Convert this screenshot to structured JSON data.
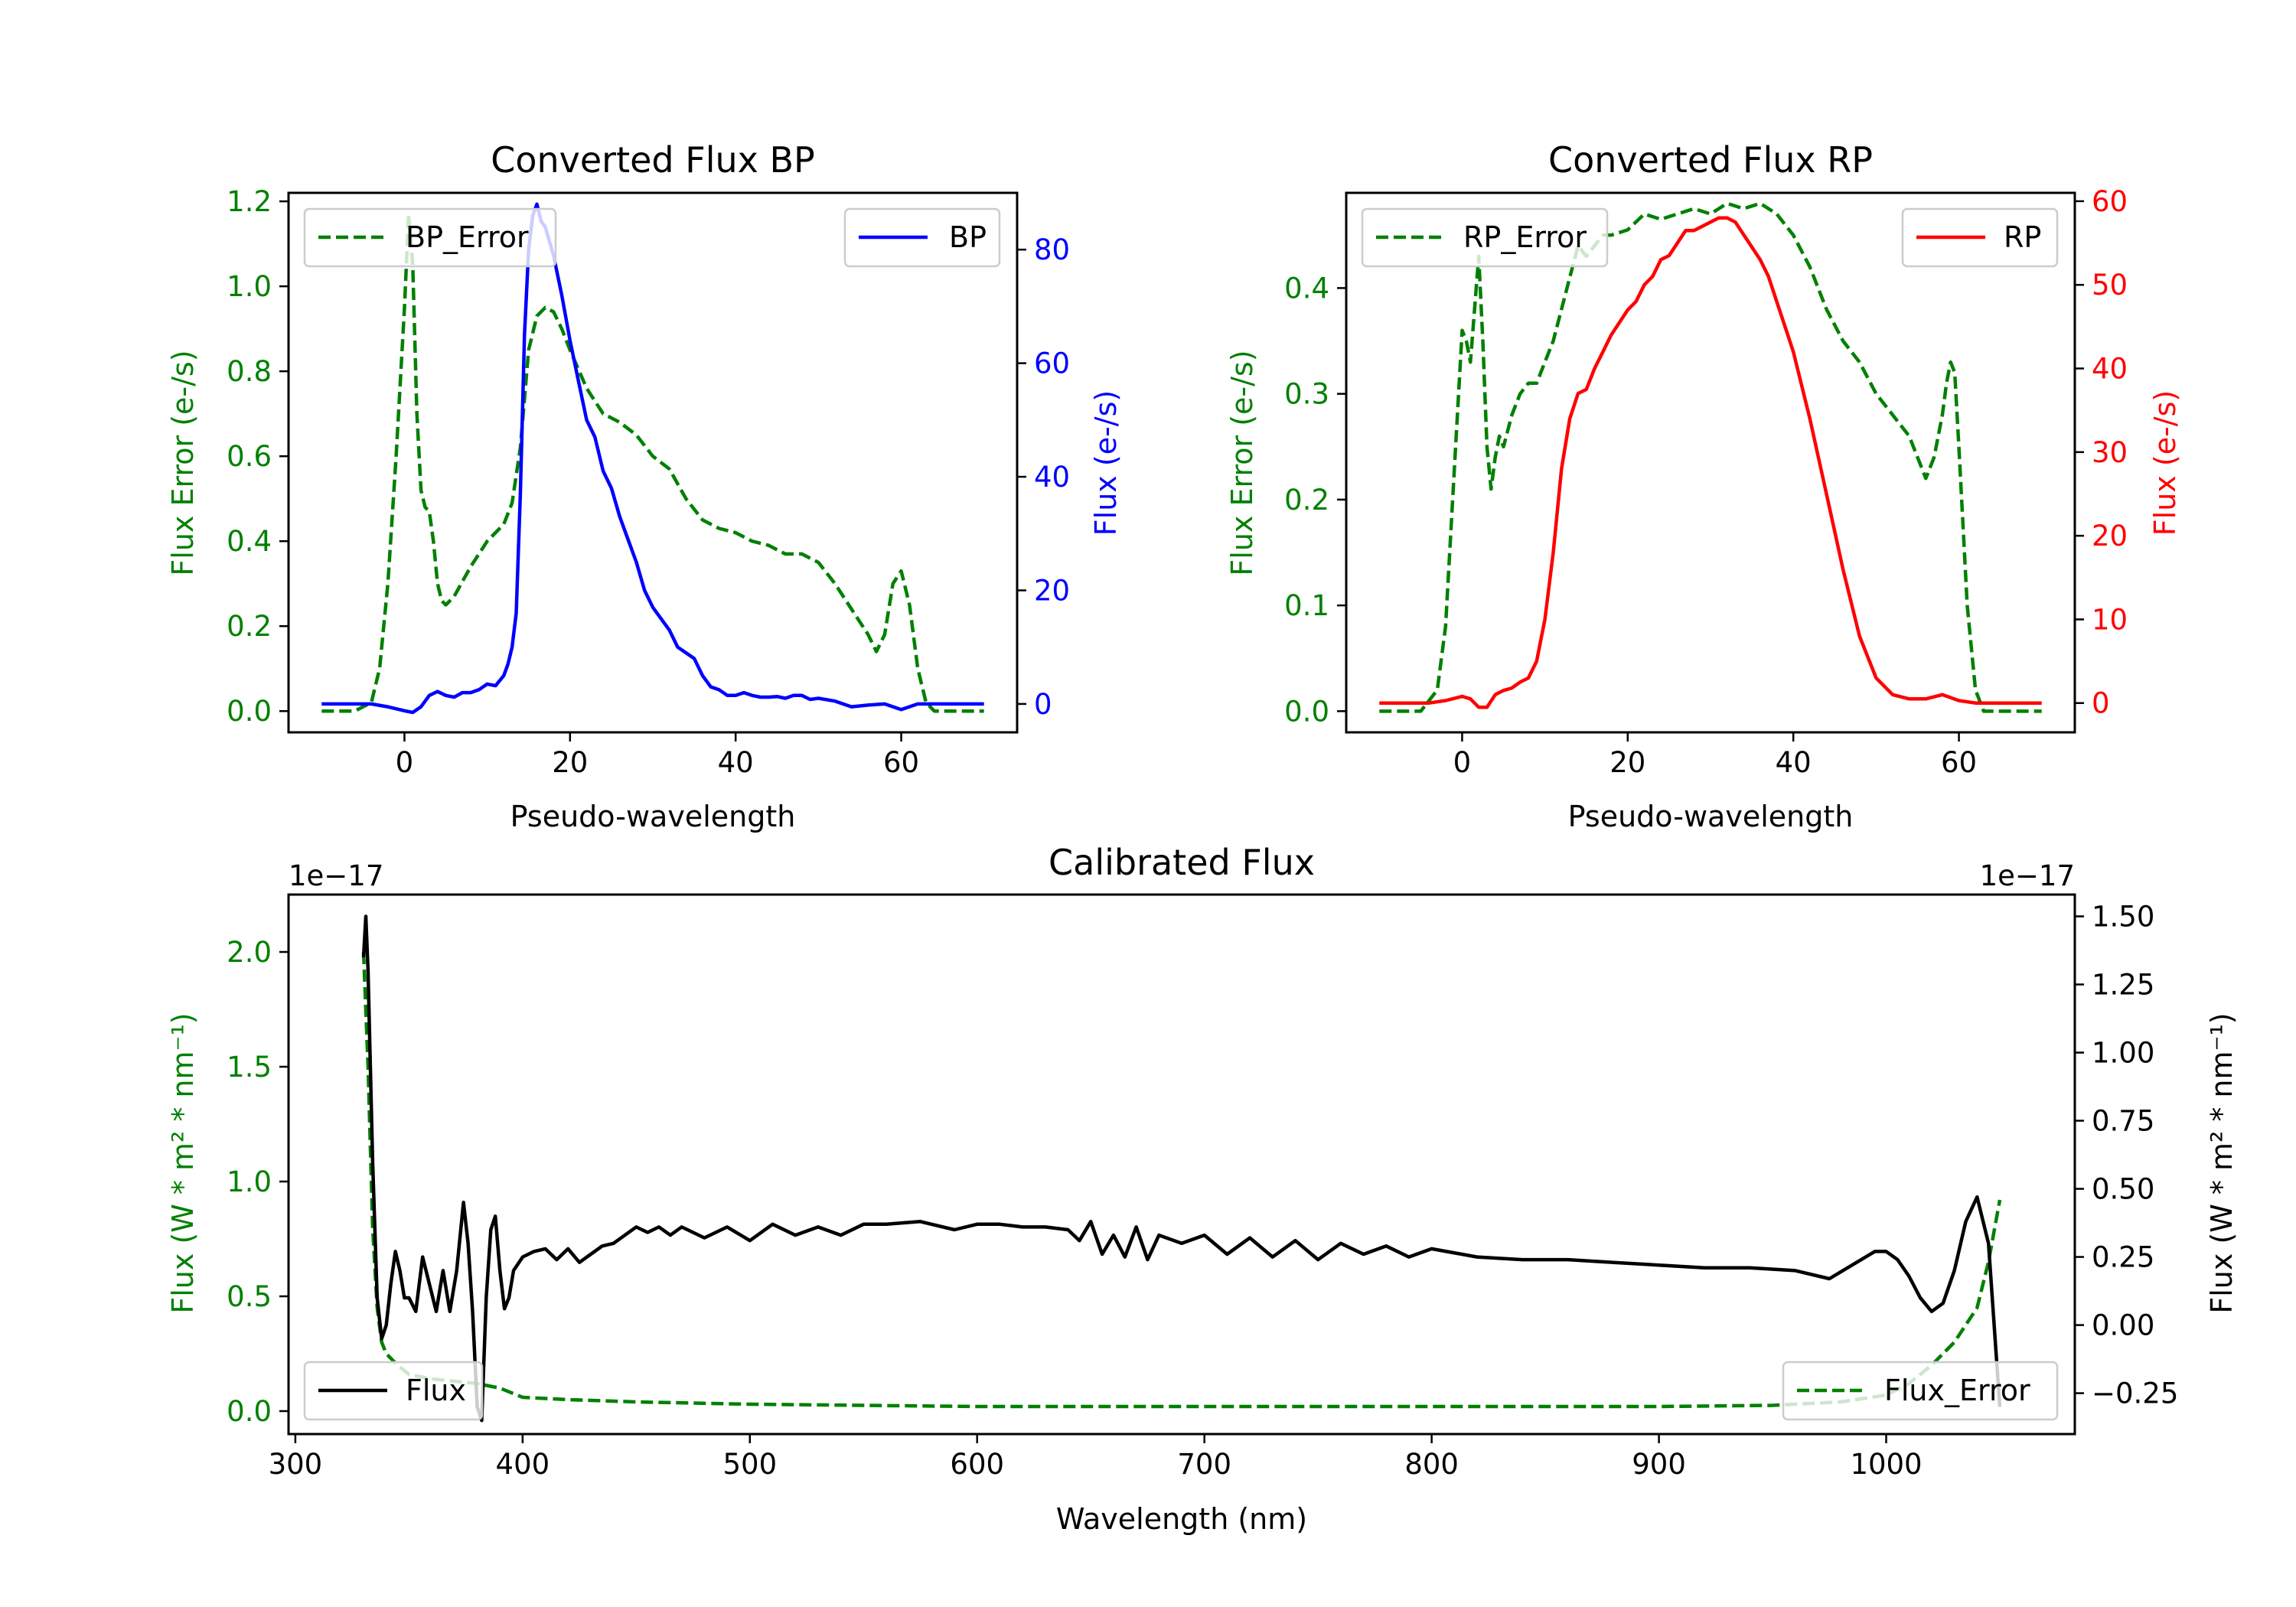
{
  "figure_title": "",
  "colors": {
    "bp": "#0000ff",
    "rp": "#ff0000",
    "error": "#008000",
    "flux": "#000000",
    "axis": "#000000"
  },
  "chart_data": [
    {
      "id": "bp",
      "type": "line",
      "title": "Converted Flux BP",
      "xlabel": "Pseudo-wavelength",
      "ylabel_left": "Flux Error (e-/s)",
      "ylabel_right": "Flux (e-/s)",
      "xlim": [
        -14,
        74
      ],
      "xticks": [
        0,
        20,
        40,
        60
      ],
      "ylim_left": [
        -0.05,
        1.22
      ],
      "yticks_left": [
        0.0,
        0.2,
        0.4,
        0.6,
        0.8,
        1.0,
        1.2
      ],
      "ytick_labels_left": [
        "0.0",
        "0.2",
        "0.4",
        "0.6",
        "0.8",
        "1.0",
        "1.2"
      ],
      "ylim_right": [
        -5,
        90
      ],
      "yticks_right": [
        0,
        20,
        40,
        60,
        80
      ],
      "legend_left": "top-left",
      "legend_right": "top-right",
      "series": [
        {
          "name": "BP_Error",
          "axis": "left",
          "color_key": "error",
          "dashed": true,
          "x": [
            -10,
            -6,
            -4,
            -3,
            -2,
            -1,
            0,
            0.5,
            1,
            1.5,
            2,
            2.5,
            3,
            3.5,
            4,
            4.5,
            5,
            5.5,
            6,
            8,
            10,
            12,
            13,
            14,
            15,
            16,
            17,
            18,
            19,
            20,
            22,
            24,
            26,
            28,
            30,
            32,
            34,
            36,
            38,
            40,
            42,
            44,
            46,
            48,
            50,
            52,
            54,
            56,
            57,
            58,
            59,
            60,
            61,
            62,
            63,
            64,
            66,
            68,
            70
          ],
          "values": [
            0.0,
            0.0,
            0.02,
            0.1,
            0.3,
            0.6,
            0.95,
            1.17,
            1.05,
            0.7,
            0.52,
            0.48,
            0.47,
            0.4,
            0.3,
            0.26,
            0.25,
            0.26,
            0.27,
            0.34,
            0.4,
            0.44,
            0.49,
            0.62,
            0.85,
            0.93,
            0.95,
            0.94,
            0.9,
            0.85,
            0.76,
            0.7,
            0.68,
            0.65,
            0.6,
            0.57,
            0.5,
            0.45,
            0.43,
            0.42,
            0.4,
            0.39,
            0.37,
            0.37,
            0.35,
            0.3,
            0.24,
            0.18,
            0.14,
            0.18,
            0.3,
            0.33,
            0.25,
            0.1,
            0.02,
            0.0,
            0.0,
            0.0,
            0.0
          ]
        },
        {
          "name": "BP",
          "axis": "right",
          "color_key": "bp",
          "dashed": false,
          "x": [
            -10,
            -4,
            -2,
            0,
            1,
            2,
            3,
            4,
            5,
            6,
            7,
            8,
            9,
            10,
            11,
            12,
            12.5,
            13,
            13.5,
            14,
            14.5,
            15,
            15.5,
            16,
            16.5,
            17,
            18,
            19,
            20,
            21,
            22,
            23,
            24,
            25,
            26,
            27,
            28,
            29,
            30,
            31,
            32,
            33,
            34,
            35,
            36,
            37,
            38,
            39,
            40,
            41,
            42,
            43,
            44,
            45,
            46,
            47,
            48,
            49,
            50,
            52,
            54,
            56,
            58,
            60,
            62,
            64,
            66,
            70
          ],
          "values": [
            0,
            0,
            -0.5,
            -1.2,
            -1.5,
            -0.5,
            1.5,
            2.2,
            1.5,
            1.2,
            2,
            2,
            2.5,
            3.5,
            3.2,
            5,
            7,
            10,
            16,
            37,
            65,
            80,
            86,
            88,
            85,
            84,
            79,
            72,
            64,
            57,
            50,
            47,
            41,
            38,
            33,
            29,
            25,
            20,
            17,
            15,
            13,
            10,
            9,
            8,
            5,
            3,
            2.5,
            1.5,
            1.5,
            2,
            1.5,
            1.2,
            1.2,
            1.3,
            1.0,
            1.5,
            1.5,
            0.8,
            1.0,
            0.5,
            -0.5,
            -0.2,
            0,
            -1.0,
            0,
            0,
            0,
            0
          ]
        }
      ]
    },
    {
      "id": "rp",
      "type": "line",
      "title": "Converted Flux RP",
      "xlabel": "Pseudo-wavelength",
      "ylabel_left": "Flux Error (e-/s)",
      "ylabel_right": "Flux (e-/s)",
      "xlim": [
        -14,
        74
      ],
      "xticks": [
        0,
        20,
        40,
        60
      ],
      "ylim_left": [
        -0.02,
        0.49
      ],
      "yticks_left": [
        0.0,
        0.1,
        0.2,
        0.3,
        0.4
      ],
      "ytick_labels_left": [
        "0.0",
        "0.1",
        "0.2",
        "0.3",
        "0.4"
      ],
      "ylim_right": [
        -3.5,
        61
      ],
      "yticks_right": [
        0,
        10,
        20,
        30,
        40,
        50,
        60
      ],
      "legend_left": "top-left",
      "legend_right": "top-right",
      "series": [
        {
          "name": "RP_Error",
          "axis": "left",
          "color_key": "error",
          "dashed": true,
          "x": [
            -10,
            -5,
            -3,
            -2,
            -1,
            0,
            0.5,
            1,
            1.5,
            2,
            2.5,
            3,
            3.5,
            4,
            4.5,
            5,
            6,
            7,
            8,
            9,
            10,
            11,
            12,
            13,
            14,
            15,
            16,
            17,
            18,
            20,
            22,
            24,
            26,
            28,
            30,
            32,
            34,
            36,
            38,
            40,
            42,
            44,
            46,
            48,
            50,
            52,
            54,
            55,
            56,
            57,
            58,
            58.5,
            59,
            59.5,
            60,
            61,
            62,
            63,
            64,
            66,
            70
          ],
          "values": [
            0.0,
            0.0,
            0.02,
            0.08,
            0.22,
            0.36,
            0.35,
            0.33,
            0.38,
            0.43,
            0.35,
            0.25,
            0.21,
            0.24,
            0.26,
            0.25,
            0.28,
            0.3,
            0.31,
            0.31,
            0.33,
            0.35,
            0.38,
            0.41,
            0.44,
            0.43,
            0.44,
            0.45,
            0.45,
            0.455,
            0.47,
            0.465,
            0.47,
            0.475,
            0.47,
            0.48,
            0.475,
            0.48,
            0.47,
            0.45,
            0.42,
            0.38,
            0.35,
            0.33,
            0.3,
            0.28,
            0.26,
            0.24,
            0.22,
            0.24,
            0.28,
            0.31,
            0.33,
            0.32,
            0.25,
            0.1,
            0.02,
            0.0,
            0.0,
            0.0,
            0.0
          ]
        },
        {
          "name": "RP",
          "axis": "right",
          "color_key": "rp",
          "dashed": false,
          "x": [
            -10,
            -4,
            -2,
            0,
            1,
            2,
            3,
            4,
            5,
            6,
            7,
            8,
            9,
            10,
            11,
            12,
            13,
            14,
            15,
            16,
            17,
            18,
            19,
            20,
            21,
            22,
            23,
            24,
            25,
            26,
            27,
            28,
            29,
            30,
            31,
            32,
            33,
            34,
            35,
            36,
            37,
            38,
            39,
            40,
            42,
            44,
            46,
            48,
            50,
            52,
            54,
            56,
            58,
            60,
            62,
            66,
            70
          ],
          "values": [
            0,
            0,
            0.3,
            0.8,
            0.5,
            -0.5,
            -0.5,
            1.0,
            1.5,
            1.8,
            2.5,
            3,
            5,
            10,
            18,
            28,
            34,
            37,
            37.5,
            40,
            42,
            44,
            45.5,
            47,
            48,
            50,
            51,
            53,
            53.5,
            55,
            56.5,
            56.5,
            57,
            57.5,
            58,
            58,
            57.5,
            56,
            54.5,
            53,
            51,
            48,
            45,
            42,
            34,
            25,
            16,
            8,
            3,
            1,
            0.5,
            0.5,
            1.0,
            0.3,
            0,
            0,
            0
          ]
        }
      ]
    },
    {
      "id": "calibrated",
      "type": "line",
      "title": "Calibrated Flux",
      "xlabel": "Wavelength (nm)",
      "ylabel_left": "Flux (W * m² * nm⁻¹)",
      "ylabel_right": "Flux (W * m² * nm⁻¹)",
      "offset_left": "1e−17",
      "offset_right": "1e−17",
      "xlim": [
        297,
        1083
      ],
      "xticks": [
        300,
        400,
        500,
        600,
        700,
        800,
        900,
        1000
      ],
      "ylim_left": [
        -0.1,
        2.25
      ],
      "yticks_left": [
        0.0,
        0.5,
        1.0,
        1.5,
        2.0
      ],
      "ytick_labels_left": [
        "0.0",
        "0.5",
        "1.0",
        "1.5",
        "2.0"
      ],
      "ylim_right": [
        -0.4,
        1.58
      ],
      "yticks_right": [
        -0.25,
        0.0,
        0.25,
        0.5,
        0.75,
        1.0,
        1.25,
        1.5
      ],
      "ytick_labels_right": [
        "−0.25",
        "0.00",
        "0.25",
        "0.50",
        "0.75",
        "1.00",
        "1.25",
        "1.50"
      ],
      "legend_left": "bottom-left",
      "legend_right": "bottom-right",
      "series": [
        {
          "name": "Flux_Error",
          "axis": "left",
          "color_key": "error",
          "dashed": true,
          "x": [
            330,
            332,
            334,
            336,
            338,
            340,
            345,
            350,
            360,
            370,
            380,
            385,
            390,
            400,
            420,
            450,
            500,
            550,
            600,
            650,
            700,
            800,
            900,
            950,
            980,
            1000,
            1010,
            1020,
            1030,
            1040,
            1045,
            1050
          ],
          "values": [
            2.0,
            1.5,
            0.8,
            0.45,
            0.3,
            0.25,
            0.2,
            0.16,
            0.14,
            0.13,
            0.12,
            0.11,
            0.1,
            0.06,
            0.05,
            0.04,
            0.03,
            0.025,
            0.02,
            0.02,
            0.02,
            0.02,
            0.02,
            0.025,
            0.04,
            0.07,
            0.12,
            0.2,
            0.3,
            0.45,
            0.65,
            0.92
          ]
        },
        {
          "name": "Flux",
          "axis": "right",
          "color_key": "flux",
          "dashed": false,
          "x": [
            330,
            331,
            332,
            334,
            336,
            338,
            340,
            342,
            344,
            346,
            348,
            350,
            353,
            356,
            359,
            362,
            365,
            368,
            371,
            374,
            376,
            378,
            380,
            382,
            384,
            386,
            388,
            390,
            392,
            394,
            396,
            400,
            405,
            410,
            415,
            420,
            425,
            430,
            435,
            440,
            445,
            450,
            455,
            460,
            465,
            470,
            480,
            490,
            500,
            510,
            520,
            530,
            540,
            550,
            560,
            575,
            590,
            600,
            610,
            620,
            630,
            640,
            645,
            650,
            655,
            660,
            665,
            670,
            675,
            680,
            690,
            700,
            710,
            720,
            730,
            740,
            750,
            760,
            770,
            780,
            790,
            800,
            820,
            840,
            860,
            880,
            900,
            920,
            940,
            960,
            975,
            985,
            995,
            1000,
            1005,
            1010,
            1015,
            1020,
            1025,
            1030,
            1035,
            1040,
            1045,
            1050
          ],
          "values": [
            1.35,
            1.5,
            1.3,
            0.6,
            0.1,
            -0.05,
            0.0,
            0.15,
            0.27,
            0.2,
            0.1,
            0.1,
            0.05,
            0.25,
            0.15,
            0.05,
            0.2,
            0.05,
            0.2,
            0.45,
            0.3,
            0.05,
            -0.3,
            -0.35,
            0.1,
            0.35,
            0.4,
            0.2,
            0.06,
            0.1,
            0.2,
            0.25,
            0.27,
            0.28,
            0.24,
            0.28,
            0.23,
            0.26,
            0.29,
            0.3,
            0.33,
            0.36,
            0.34,
            0.36,
            0.33,
            0.36,
            0.32,
            0.36,
            0.31,
            0.37,
            0.33,
            0.36,
            0.33,
            0.37,
            0.37,
            0.38,
            0.35,
            0.37,
            0.37,
            0.36,
            0.36,
            0.35,
            0.31,
            0.38,
            0.26,
            0.33,
            0.25,
            0.36,
            0.24,
            0.33,
            0.3,
            0.33,
            0.26,
            0.32,
            0.25,
            0.31,
            0.24,
            0.3,
            0.26,
            0.29,
            0.25,
            0.28,
            0.25,
            0.24,
            0.24,
            0.23,
            0.22,
            0.21,
            0.21,
            0.2,
            0.17,
            0.22,
            0.27,
            0.27,
            0.24,
            0.18,
            0.1,
            0.05,
            0.08,
            0.2,
            0.38,
            0.47,
            0.3,
            -0.3
          ]
        }
      ]
    }
  ]
}
